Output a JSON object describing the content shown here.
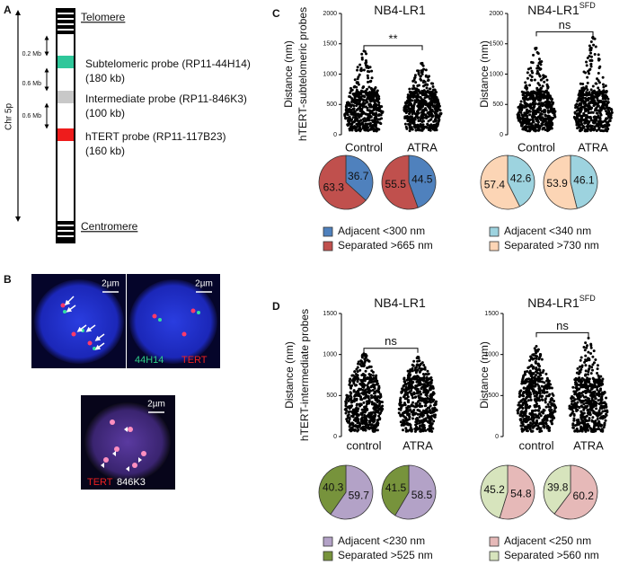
{
  "panel_labels": [
    "A",
    "B",
    "C",
    "D"
  ],
  "panel_a": {
    "telomere": "Telomere",
    "centromere": "Centromere",
    "axis_label": "Chr 5p",
    "distances": [
      "0.2 Mb",
      "0.6 Mb",
      "0.6 Mb"
    ],
    "probes": [
      {
        "name": "Subtelomeric probe (RP11-44H14)",
        "size": "(180 kb)",
        "color": "#2fc79a"
      },
      {
        "name": "Intermediate probe (RP11-846K3)",
        "size": "(100 kb)",
        "color": "#c8c8c8"
      },
      {
        "name": "hTERT probe (RP11-117B23)",
        "size": "(160 kb)",
        "color": "#ee1c1c"
      }
    ]
  },
  "panel_b": {
    "scale_bars": [
      "2µm",
      "2µm",
      "2µm"
    ],
    "labels": [
      {
        "text": "44H14",
        "color": "#2fd08a"
      },
      {
        "text": "TERT",
        "color": "#ee2020"
      },
      {
        "text": "TERT",
        "color": "#ee2020"
      },
      {
        "text": "846K3",
        "color": "#ffffff"
      }
    ]
  },
  "chart_data": [
    {
      "type": "dotplot",
      "title": "NB4-LR1",
      "y_label": [
        "Distance (nm)",
        "hTERT-subtelomeric probes"
      ],
      "categories": [
        "Control",
        "ATRA"
      ],
      "max_values": [
        1380,
        1180
      ],
      "ylim": [
        0,
        2000
      ],
      "yticks": [
        0,
        500,
        1000,
        1500,
        2000
      ],
      "significance": "**",
      "series": [
        {
          "name": "Adjacent <300 nm",
          "color": "#4f81bd",
          "values": [
            36.7,
            44.5
          ]
        },
        {
          "name": "Separated >665 nm",
          "color": "#c0504d",
          "values": [
            63.3,
            55.5
          ]
        }
      ]
    },
    {
      "type": "dotplot",
      "title": "NB4-LR1",
      "title_superscript": "SFD",
      "y_label": [
        "Distance (nm)"
      ],
      "categories": [
        "Control",
        "ATRA"
      ],
      "max_values": [
        1430,
        1610
      ],
      "ylim": [
        0,
        2000
      ],
      "yticks": [
        0,
        500,
        1000,
        1500,
        2000
      ],
      "significance": "ns",
      "series": [
        {
          "name": "Adjacent <340 nm",
          "color": "#9dd3df",
          "values": [
            42.6,
            46.1
          ]
        },
        {
          "name": "Separated >730 nm",
          "color": "#fcd5b5",
          "values": [
            57.4,
            53.9
          ]
        }
      ]
    },
    {
      "type": "dotplot",
      "title": "NB4-LR1",
      "y_label": [
        "Distance (nm)",
        "hTERT-intermediate probes"
      ],
      "categories": [
        "control",
        "ATRA"
      ],
      "max_values": [
        1010,
        970
      ],
      "ylim": [
        0,
        1500
      ],
      "yticks": [
        0,
        500,
        1000,
        1500
      ],
      "significance": "ns",
      "series": [
        {
          "name": "Adjacent <230 nm",
          "color": "#b3a2c7",
          "values": [
            59.7,
            58.5
          ]
        },
        {
          "name": "Separated >525 nm",
          "color": "#77933c",
          "values": [
            40.3,
            41.5
          ]
        }
      ]
    },
    {
      "type": "dotplot",
      "title": "NB4-LR1",
      "title_superscript": "SFD",
      "y_label": [
        "Distance (nm)"
      ],
      "categories": [
        "control",
        "ATRA"
      ],
      "max_values": [
        1100,
        1200
      ],
      "ylim": [
        0,
        1500
      ],
      "yticks": [
        0,
        500,
        1000,
        1500
      ],
      "significance": "ns",
      "series": [
        {
          "name": "Adjacent <250 nm",
          "color": "#e6b9b8",
          "values": [
            54.8,
            60.2
          ]
        },
        {
          "name": "Separated >560 nm",
          "color": "#d7e4bd",
          "values": [
            45.2,
            39.8
          ]
        }
      ]
    }
  ]
}
